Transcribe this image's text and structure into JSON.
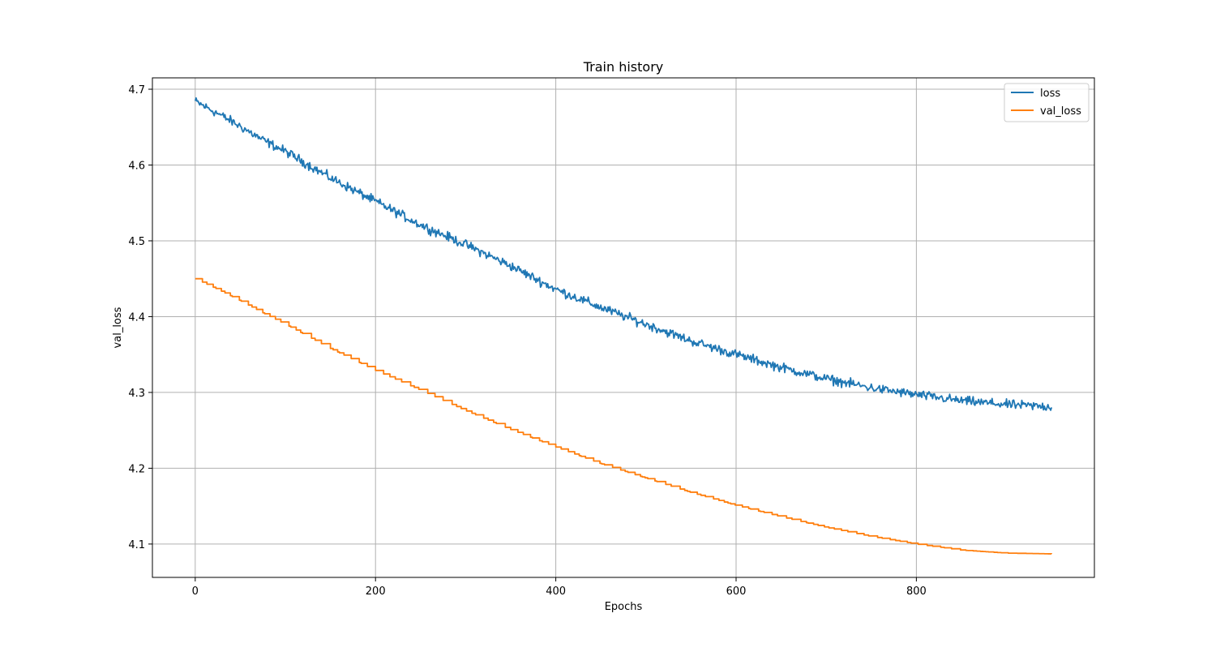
{
  "chart_data": {
    "type": "line",
    "title": "Train history",
    "xlabel": "Epochs",
    "ylabel": "val_loss",
    "xlim": [
      -47.5,
      997.5
    ],
    "ylim": [
      4.056,
      4.715
    ],
    "xticks": [
      0,
      200,
      400,
      600,
      800
    ],
    "yticks": [
      4.1,
      4.2,
      4.3,
      4.4,
      4.5,
      4.6,
      4.7
    ],
    "xtick_labels": [
      "0",
      "200",
      "400",
      "600",
      "800"
    ],
    "ytick_labels": [
      "4.1",
      "4.2",
      "4.3",
      "4.4",
      "4.5",
      "4.6",
      "4.7"
    ],
    "grid": true,
    "legend_position": "top-right",
    "x_range": [
      0,
      950
    ],
    "series": [
      {
        "name": "loss",
        "color": "#1f77b4",
        "style": "noisy",
        "noise_amplitude": 0.003,
        "x": [
          0,
          25,
          50,
          75,
          100,
          150,
          200,
          250,
          300,
          350,
          400,
          450,
          500,
          550,
          600,
          650,
          700,
          750,
          800,
          850,
          900,
          950
        ],
        "values": [
          4.684,
          4.668,
          4.651,
          4.633,
          4.618,
          4.583,
          4.552,
          4.521,
          4.495,
          4.467,
          4.436,
          4.412,
          4.39,
          4.368,
          4.35,
          4.333,
          4.318,
          4.306,
          4.297,
          4.289,
          4.284,
          4.281
        ]
      },
      {
        "name": "val_loss",
        "color": "#ff7f0e",
        "style": "stepped",
        "x": [
          0,
          25,
          50,
          75,
          100,
          150,
          200,
          250,
          300,
          350,
          400,
          450,
          500,
          550,
          600,
          650,
          700,
          750,
          800,
          850,
          900,
          950
        ],
        "values": [
          4.45,
          4.436,
          4.421,
          4.405,
          4.39,
          4.358,
          4.329,
          4.303,
          4.276,
          4.251,
          4.228,
          4.206,
          4.187,
          4.168,
          4.151,
          4.136,
          4.122,
          4.11,
          4.1,
          4.092,
          4.088,
          4.087
        ]
      }
    ]
  }
}
